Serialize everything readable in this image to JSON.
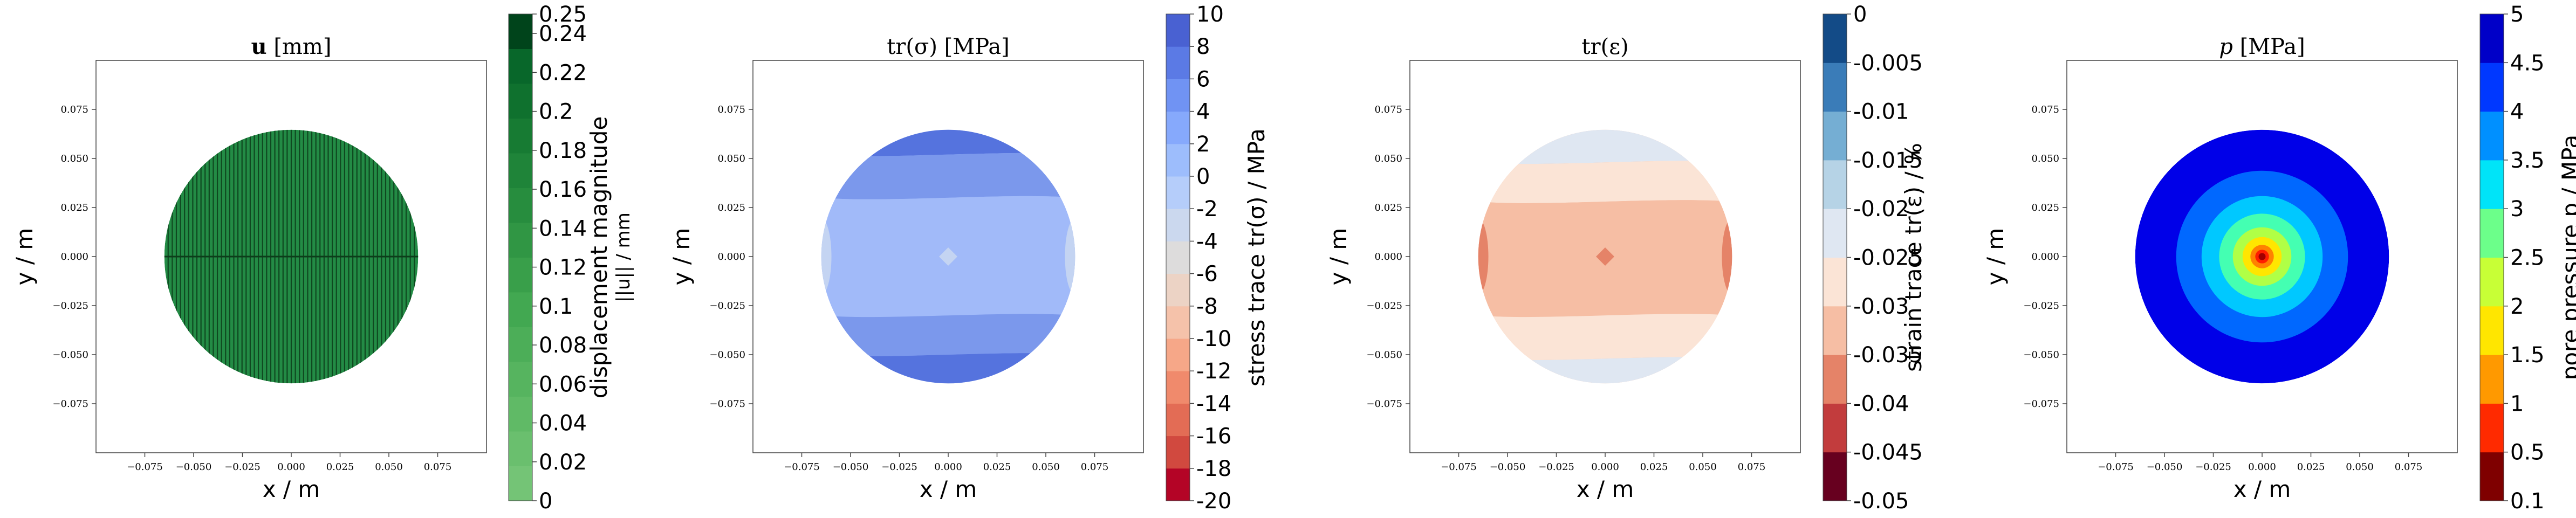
{
  "chart_data": [
    {
      "type": "heatmap",
      "title": "u [mm]",
      "title_bold_part": "u",
      "title_rest": " [mm]",
      "xlabel": "x / m",
      "ylabel": "y / m",
      "xticks": [
        "−0.075",
        "−0.050",
        "−0.025",
        "0.000",
        "0.025",
        "0.050",
        "0.075"
      ],
      "yticks": [
        "0.075",
        "0.050",
        "0.025",
        "0.000",
        "−0.025",
        "−0.050",
        "−0.075"
      ],
      "xlim": [
        -0.1,
        0.1
      ],
      "ylim": [
        -0.1,
        0.1
      ],
      "domain_radius": 0.065,
      "field": "uniform",
      "fill_color": "#238b45",
      "colorbar": {
        "label_line1": "displacement magnitude",
        "label_line2": "||u|| / mm",
        "ticks": [
          "0",
          "0.02",
          "0.04",
          "0.06",
          "0.08",
          "0.1",
          "0.12",
          "0.14",
          "0.16",
          "0.18",
          "0.2",
          "0.22",
          "0.24",
          "0.25"
        ],
        "colors": [
          "#74c476",
          "#6abf6e",
          "#60ba66",
          "#56b45f",
          "#4cae58",
          "#42a851",
          "#399f4a",
          "#309644",
          "#278d3e",
          "#1f8439",
          "#177b33",
          "#0f712e",
          "#08672a",
          "#00441b"
        ]
      }
    },
    {
      "type": "heatmap",
      "title": "tr(σ) [MPa]",
      "xlabel": "x / m",
      "ylabel": "y / m",
      "xticks": [
        "−0.075",
        "−0.050",
        "−0.025",
        "0.000",
        "0.025",
        "0.050",
        "0.075"
      ],
      "yticks": [
        "0.075",
        "0.050",
        "0.025",
        "0.000",
        "−0.025",
        "−0.050",
        "−0.075"
      ],
      "xlim": [
        -0.1,
        0.1
      ],
      "ylim": [
        -0.1,
        0.1
      ],
      "domain_radius": 0.065,
      "field": "bands",
      "bands": [
        {
          "y_from": 0.065,
          "y_to": 0.052,
          "color": "#5573de"
        },
        {
          "y_from": 0.052,
          "y_to": 0.03,
          "color": "#7b98ec"
        },
        {
          "y_from": 0.03,
          "y_to": -0.03,
          "color": "#a1baf9"
        },
        {
          "y_from": -0.03,
          "y_to": -0.05,
          "color": "#7b98ec"
        },
        {
          "y_from": -0.05,
          "y_to": -0.065,
          "color": "#5573de"
        }
      ],
      "side_color": "#c4d4f2",
      "colorbar": {
        "label_line1": "stress trace tr(σ) / MPa",
        "label_line2": "",
        "ticks": [
          "10",
          "8",
          "6",
          "4",
          "2",
          "0",
          "-2",
          "-4",
          "-6",
          "-8",
          "-10",
          "-12",
          "-14",
          "-16",
          "-18",
          "-20"
        ],
        "colors": [
          "#b40426",
          "#d1493f",
          "#e36c55",
          "#f08a6c",
          "#f6a788",
          "#f5c2aa",
          "#ecd3c5",
          "#dddcdc",
          "#cbd8ee",
          "#b5cdfa",
          "#9dbdfc",
          "#86a9fc",
          "#7093f3",
          "#5b7ae5",
          "#4961d2"
        ]
      }
    },
    {
      "type": "heatmap",
      "title": "tr(ε)",
      "xlabel": "x / m",
      "ylabel": "y / m",
      "xticks": [
        "−0.075",
        "−0.050",
        "−0.025",
        "0.000",
        "0.025",
        "0.050",
        "0.075"
      ],
      "yticks": [
        "0.075",
        "0.050",
        "0.025",
        "0.000",
        "−0.025",
        "−0.050",
        "−0.075"
      ],
      "xlim": [
        -0.1,
        0.1
      ],
      "ylim": [
        -0.1,
        0.1
      ],
      "domain_radius": 0.065,
      "field": "bands",
      "bands": [
        {
          "y_from": 0.065,
          "y_to": 0.048,
          "color": "#dfe7f2"
        },
        {
          "y_from": 0.048,
          "y_to": 0.028,
          "color": "#fbe4d6"
        },
        {
          "y_from": 0.028,
          "y_to": -0.03,
          "color": "#f6bea4"
        },
        {
          "y_from": -0.03,
          "y_to": -0.052,
          "color": "#fbe4d6"
        },
        {
          "y_from": -0.052,
          "y_to": -0.065,
          "color": "#dfe7f2"
        }
      ],
      "side_color": "#e58368",
      "colorbar": {
        "label_line1": "strain trace tr(ε) / %",
        "label_line2": "",
        "ticks": [
          "0",
          "-0.005",
          "-0.01",
          "-0.015",
          "-0.02",
          "-0.025",
          "-0.03",
          "-0.035",
          "-0.04",
          "-0.045",
          "-0.05"
        ],
        "colors": [
          "#67001f",
          "#c23c3d",
          "#e58368",
          "#f6bea4",
          "#fbe4d6",
          "#dfe7f2",
          "#b6d3e6",
          "#75aed3",
          "#3a7cb8",
          "#134b87"
        ]
      }
    },
    {
      "type": "heatmap",
      "title": "p [MPa]",
      "title_italic_part": "p",
      "title_rest": " [MPa]",
      "xlabel": "x / m",
      "ylabel": "y / m",
      "xticks": [
        "−0.075",
        "−0.050",
        "−0.025",
        "0.000",
        "0.025",
        "0.050",
        "0.075"
      ],
      "yticks": [
        "0.075",
        "0.050",
        "0.025",
        "0.000",
        "−0.025",
        "−0.050",
        "−0.075"
      ],
      "xlim": [
        -0.1,
        0.1
      ],
      "ylim": [
        -0.1,
        0.1
      ],
      "domain_radius": 0.065,
      "field": "rings",
      "rings": [
        {
          "r": 0.065,
          "color": "#0000e8"
        },
        {
          "r": 0.044,
          "color": "#0068ff"
        },
        {
          "r": 0.031,
          "color": "#00c8ff"
        },
        {
          "r": 0.022,
          "color": "#44ffb2"
        },
        {
          "r": 0.015,
          "color": "#b0ff46"
        },
        {
          "r": 0.01,
          "color": "#ffe600"
        },
        {
          "r": 0.006,
          "color": "#ff8200"
        },
        {
          "r": 0.0035,
          "color": "#ff1e00"
        },
        {
          "r": 0.0018,
          "color": "#a00000"
        }
      ],
      "colorbar": {
        "label_line1": "pore pressure p / MPa",
        "label_line2": "",
        "ticks": [
          "5",
          "4.5",
          "4",
          "3.5",
          "3",
          "2.5",
          "2",
          "1.5",
          "1",
          "0.5",
          "0.1"
        ],
        "colors": [
          "#7f0000",
          "#ff2a00",
          "#ff9900",
          "#ffe600",
          "#c8ff36",
          "#6cff8a",
          "#00e4f8",
          "#0090ff",
          "#0038ff",
          "#0000c8"
        ]
      }
    }
  ]
}
